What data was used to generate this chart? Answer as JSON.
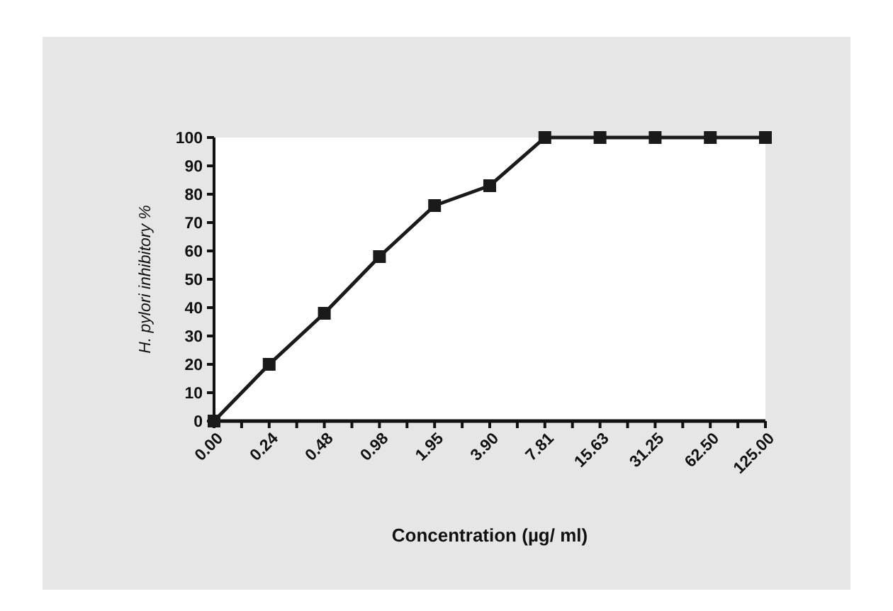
{
  "chart_data": {
    "type": "line",
    "xlabel": "Concentration (µg/ ml)",
    "ylabel": "H. pylori  inhibitory %",
    "categories": [
      "0.00",
      "0.24",
      "0.48",
      "0.98",
      "1.95",
      "3.90",
      "7.81",
      "15.63",
      "31.25",
      "62.50",
      "125.00"
    ],
    "series": [
      {
        "color": "#1a1a1a",
        "values": [
          0,
          20,
          38,
          58,
          76,
          83,
          100,
          100,
          100,
          100,
          100
        ]
      }
    ],
    "ylim": [
      0,
      100
    ],
    "yticks": [
      0,
      10,
      20,
      30,
      40,
      50,
      60,
      70,
      80,
      90,
      100
    ],
    "grid": false,
    "marker": "square",
    "line_style": "solid"
  }
}
